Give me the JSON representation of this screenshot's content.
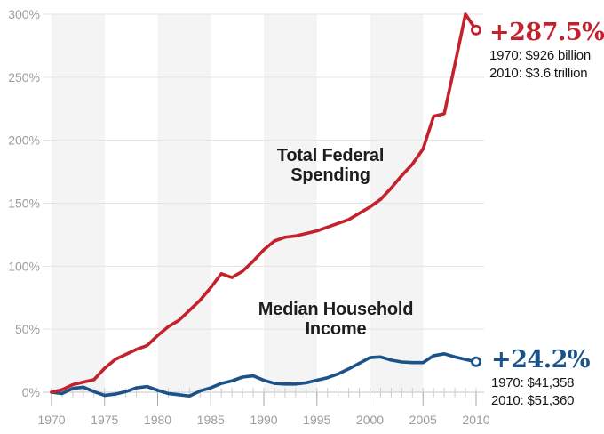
{
  "chart_data": {
    "type": "line",
    "title": "",
    "x_start": 1970,
    "x_end": 2010,
    "ylim": [
      0,
      300
    ],
    "grid": "horizontal",
    "legend_position": "inline-labels-and-end-callouts",
    "years": [
      1970,
      1971,
      1972,
      1973,
      1974,
      1975,
      1976,
      1977,
      1978,
      1979,
      1980,
      1981,
      1982,
      1983,
      1984,
      1985,
      1986,
      1987,
      1988,
      1989,
      1990,
      1991,
      1992,
      1993,
      1994,
      1995,
      1996,
      1997,
      1998,
      1999,
      2000,
      2001,
      2002,
      2003,
      2004,
      2005,
      2006,
      2007,
      2008,
      2009,
      2010
    ],
    "ytick_values": [
      0,
      50,
      100,
      150,
      200,
      250,
      300
    ],
    "ytick_labels": [
      "0%",
      "50%",
      "100%",
      "150%",
      "200%",
      "250%",
      "300%"
    ],
    "xtick_values": [
      1970,
      1975,
      1980,
      1985,
      1990,
      1995,
      2000,
      2005,
      2010
    ],
    "xtick_labels": [
      "1970",
      "1975",
      "1980",
      "1985",
      "1990",
      "1995",
      "2000",
      "2005",
      "2010"
    ],
    "bands": [
      [
        1970,
        1975
      ],
      [
        1980,
        1985
      ],
      [
        1990,
        1995
      ],
      [
        2000,
        2005
      ]
    ],
    "series": [
      {
        "name": "Total Federal Spending",
        "label_line1": "Total Federal",
        "label_line2": "Spending",
        "color": "#c3222d",
        "unit": "percent change since 1970",
        "values": [
          0,
          2,
          6,
          8,
          10,
          19,
          26,
          30,
          34,
          37,
          45,
          52,
          57,
          65,
          73,
          83,
          94,
          91,
          96,
          104,
          113,
          120,
          123,
          124,
          126,
          128,
          131,
          134,
          137,
          142,
          147,
          153,
          162,
          172,
          181,
          193,
          219,
          221,
          260,
          300,
          287.5
        ],
        "callout": {
          "percent": "+287.5%",
          "start": "1970: $926 billion",
          "end": "2010: $3.6 trillion"
        }
      },
      {
        "name": "Median Household Income",
        "label_line1": "Median Household",
        "label_line2": "Income",
        "color": "#1b5288",
        "unit": "percent change since 1970",
        "values": [
          0,
          -1,
          3,
          4,
          0.5,
          -2.5,
          -1.5,
          0.5,
          3.5,
          4.5,
          1.5,
          -1,
          -2,
          -3,
          1,
          3.5,
          7,
          9,
          12,
          13,
          9.5,
          7,
          6.5,
          6.5,
          7.5,
          9.5,
          11.5,
          14.5,
          18.5,
          23,
          27.5,
          28,
          25.5,
          24,
          23.5,
          23.5,
          29,
          30.5,
          28,
          26,
          24.2
        ],
        "callout": {
          "percent": "+24.2%",
          "start": "1970: $41,358",
          "end": "2010: $51,360"
        }
      }
    ]
  },
  "colors": {
    "spending": "#c3222d",
    "income": "#1b5288",
    "band": "#f4f4f4",
    "grid": "#e3e3e3",
    "baseline": "#c8c8c8",
    "tick_minor": "#cccccc",
    "tick_major": "#aaaaaa",
    "axis_text": "#9c9c9c",
    "label_text": "#1d1d1d",
    "callout_subtext": "#161616",
    "marker_fill": "#ffffff"
  }
}
